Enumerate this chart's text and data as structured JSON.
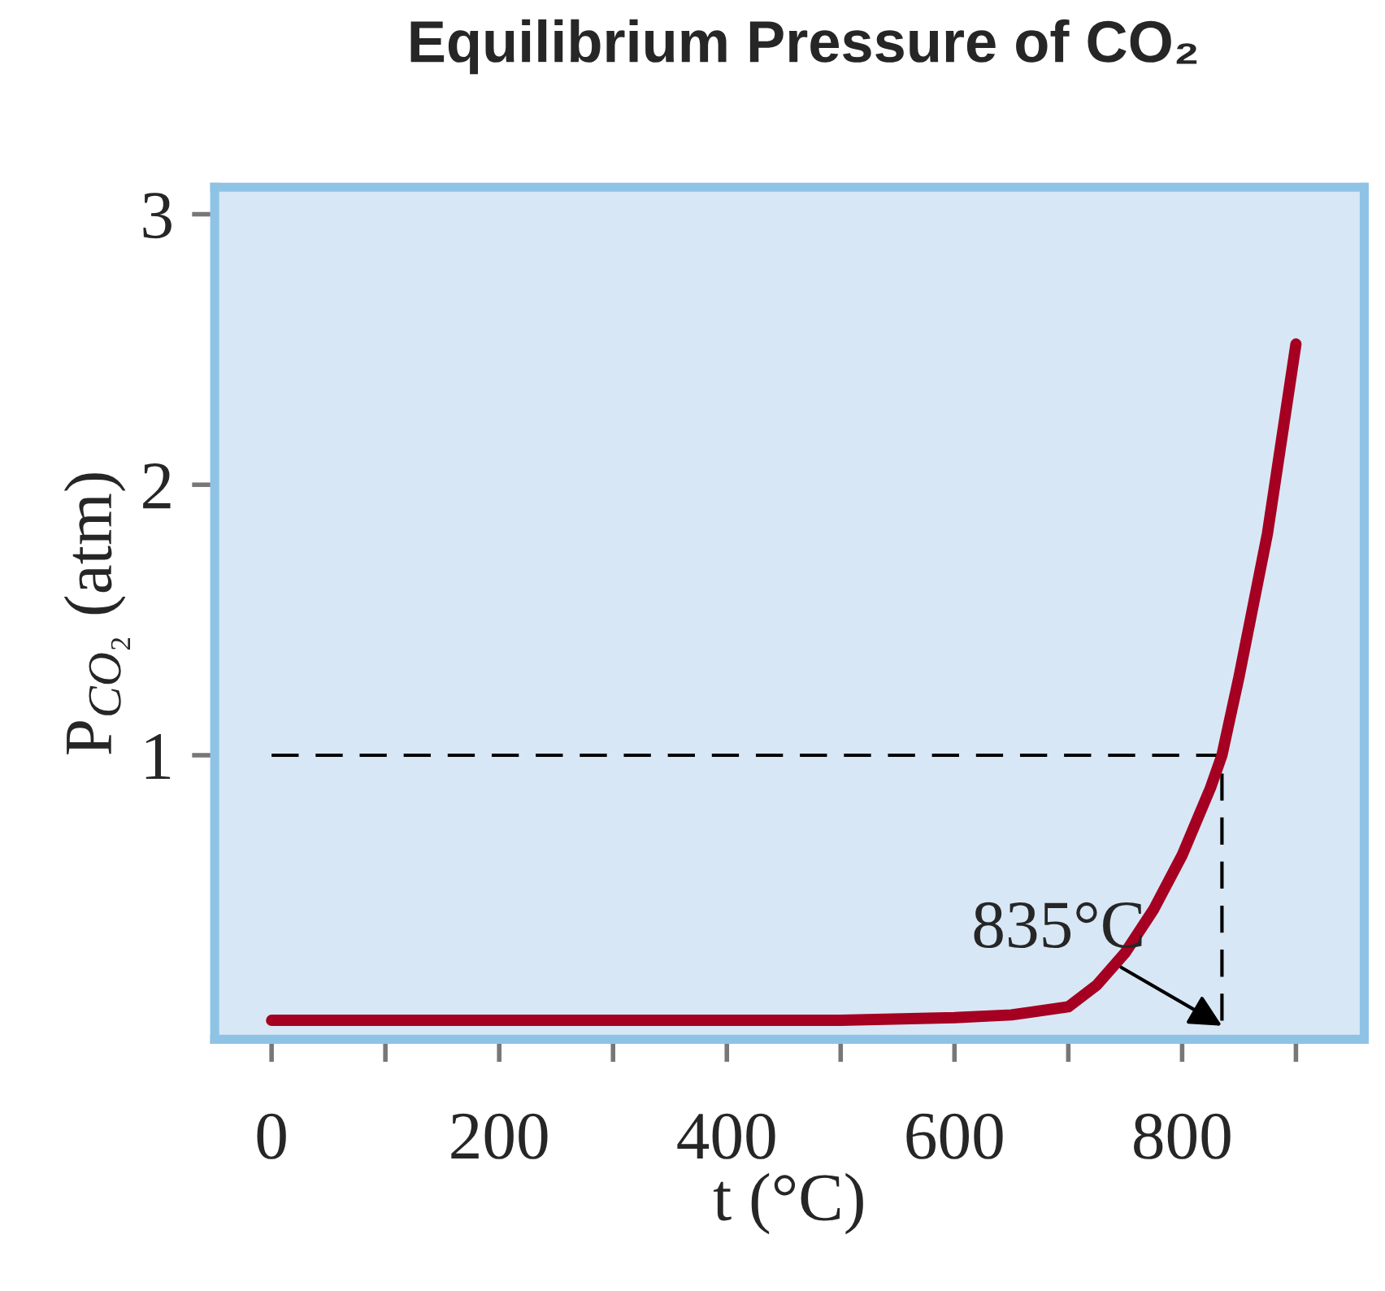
{
  "chart_data": {
    "type": "line",
    "title": "Equilibrium Pressure of CO₂",
    "xlabel": "t (°C)",
    "ylabel": "P$_{CO₂}$ (atm)",
    "xlim": [
      -50,
      960
    ],
    "ylim": [
      -0.05,
      3.1
    ],
    "xticks": [
      0,
      {
        "value": 100,
        "label": null
      },
      200,
      {
        "value": 300,
        "label": null
      },
      400,
      {
        "value": 500,
        "label": null
      },
      600,
      {
        "value": 700,
        "label": null
      },
      800,
      {
        "value": 900,
        "label": null
      }
    ],
    "yticks": [
      1,
      2,
      3
    ],
    "grid": false,
    "series": [
      {
        "color": "#a50021",
        "x": [
          0,
          100,
          200,
          300,
          400,
          500,
          600,
          650,
          700,
          725,
          750,
          775,
          800,
          825,
          835,
          850,
          875,
          900
        ],
        "values": [
          0.02,
          0.02,
          0.02,
          0.02,
          0.02,
          0.02,
          0.03,
          0.04,
          0.07,
          0.15,
          0.27,
          0.43,
          0.63,
          0.88,
          1.0,
          1.29,
          1.82,
          2.52
        ]
      },
      {
        "color": "#000000",
        "line_style": "dashed",
        "x": [
          0,
          835,
          835
        ],
        "values": [
          1,
          1,
          0
        ]
      }
    ],
    "annotations": [
      {
        "text": "835°C",
        "x": 835,
        "y": 0
      }
    ]
  }
}
